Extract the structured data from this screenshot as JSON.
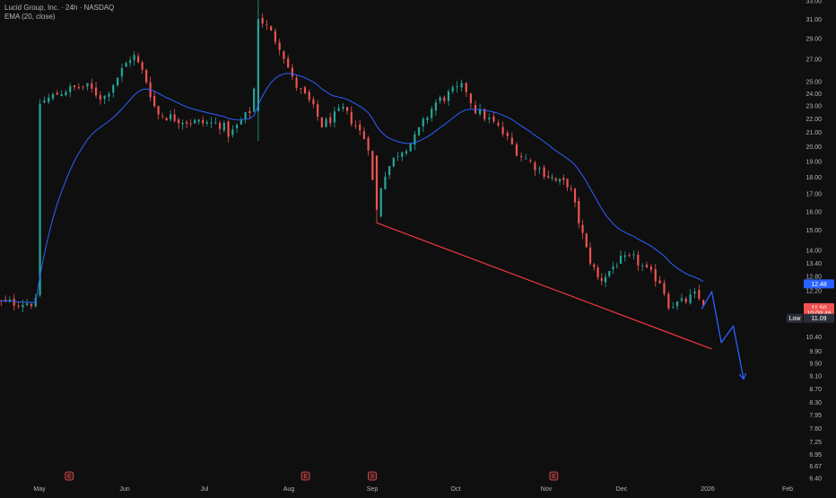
{
  "legend": {
    "title": "Lucid Group, Inc. · 24h · NASDAQ",
    "indicator": "EMA (20, close)"
  },
  "colors": {
    "background": "#0f0f0f",
    "up": "#26a69a",
    "down": "#ef5350",
    "ema": "#2962ff",
    "trendline": "#f23645",
    "projection": "#2962ff",
    "grid": "#1f1f1f",
    "axis_text": "#b2b5be"
  },
  "chart_data": {
    "type": "candlestick",
    "symbol": "Lucid Group, Inc.",
    "interval": "24h",
    "exchange": "NASDAQ",
    "scale": "log",
    "ylim": [
      6.4,
      33.0
    ],
    "grid": false,
    "price_ticks": [
      "33.00",
      "31.00",
      "29.00",
      "27.00",
      "25.00",
      "24.00",
      "23.00",
      "22.00",
      "21.00",
      "20.00",
      "19.00",
      "18.00",
      "17.00",
      "16.00",
      "15.00",
      "14.00",
      "13.40",
      "12.80",
      "12.20",
      "10.40",
      "9.90",
      "9.50",
      "9.10",
      "8.70",
      "8.30",
      "7.95",
      "7.60",
      "7.25",
      "6.95",
      "6.67",
      "6.40"
    ],
    "month_labels": [
      "May",
      "Jun",
      "Jul",
      "Aug",
      "Sep",
      "Oct",
      "Nov",
      "Dec",
      "2026",
      "Feb"
    ],
    "event_markers": [
      {
        "month_index": 0.35,
        "letter": "E"
      },
      {
        "month_index": 3.2,
        "letter": "E"
      },
      {
        "month_index": 4.0,
        "letter": "S"
      },
      {
        "month_index": 6.1,
        "letter": "E"
      }
    ],
    "price_labels": [
      {
        "text": "12.48",
        "value": 12.48,
        "kind": "ema"
      },
      {
        "text": "11.50",
        "value": 11.5,
        "kind": "last"
      },
      {
        "text": "10:09:46",
        "value": 11.28,
        "kind": "countdown"
      },
      {
        "text": "11.09",
        "value": 11.09,
        "kind": "low",
        "tag": "Low"
      }
    ],
    "indicator": {
      "name": "EMA (20, close)",
      "period": 20
    },
    "anchors": [
      [
        0.0,
        23.2
      ],
      [
        0.3,
        24.3
      ],
      [
        0.55,
        24.6
      ],
      [
        0.75,
        23.6
      ],
      [
        0.95,
        25.8
      ],
      [
        1.1,
        27.5
      ],
      [
        1.25,
        25.5
      ],
      [
        1.4,
        22.4
      ],
      [
        1.8,
        21.8
      ],
      [
        2.2,
        21.6
      ],
      [
        2.3,
        20.8
      ],
      [
        2.5,
        22.3
      ],
      [
        2.58,
        23.0
      ],
      [
        2.62,
        31.5
      ],
      [
        2.75,
        30.0
      ],
      [
        2.9,
        28.2
      ],
      [
        3.05,
        25.0
      ],
      [
        3.25,
        23.3
      ],
      [
        3.4,
        21.5
      ],
      [
        3.65,
        22.7
      ],
      [
        3.8,
        21.5
      ],
      [
        3.95,
        20.2
      ],
      [
        4.05,
        15.6
      ],
      [
        4.12,
        18.0
      ],
      [
        4.3,
        19.5
      ],
      [
        4.5,
        20.5
      ],
      [
        4.75,
        23.2
      ],
      [
        5.0,
        24.3
      ],
      [
        5.1,
        24.6
      ],
      [
        5.2,
        22.8
      ],
      [
        5.45,
        21.5
      ],
      [
        5.7,
        19.5
      ],
      [
        5.95,
        18.4
      ],
      [
        6.15,
        17.7
      ],
      [
        6.3,
        17.6
      ],
      [
        6.45,
        15.2
      ],
      [
        6.55,
        13.8
      ],
      [
        6.7,
        12.6
      ],
      [
        6.8,
        12.9
      ],
      [
        6.95,
        13.5
      ],
      [
        7.15,
        13.6
      ],
      [
        7.3,
        13.0
      ],
      [
        7.45,
        12.6
      ],
      [
        7.55,
        11.6
      ],
      [
        7.7,
        11.7
      ],
      [
        7.85,
        12.0
      ],
      [
        7.95,
        11.7
      ]
    ],
    "trendline": {
      "from": [
        4.05,
        15.4
      ],
      "to": [
        8.05,
        9.98
      ]
    },
    "projection": [
      [
        7.93,
        11.45
      ],
      [
        8.05,
        12.15
      ],
      [
        8.17,
        10.2
      ],
      [
        8.32,
        10.8
      ],
      [
        8.45,
        9.0
      ]
    ]
  }
}
